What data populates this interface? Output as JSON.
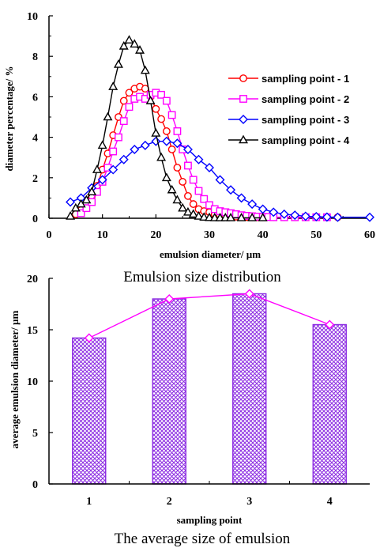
{
  "chart_data": [
    {
      "type": "line",
      "xlabel": "emulsion diameter/ µm",
      "ylabel": "diameter percentage/ %",
      "caption": "Emulsion size distribution",
      "xlim": [
        0,
        60
      ],
      "ylim": [
        0,
        10
      ],
      "xticks": [
        "0",
        "10",
        "20",
        "30",
        "40",
        "50",
        "60"
      ],
      "yticks": [
        "0",
        "2",
        "4",
        "6",
        "8",
        "10"
      ],
      "grid": false,
      "legend_position": "right",
      "series": [
        {
          "name": "sampling point - 1",
          "color": "#ff0000",
          "marker": "circle",
          "x": [
            5,
            6,
            7,
            8,
            9,
            10,
            11,
            12,
            13,
            14,
            15,
            16,
            17,
            18,
            19,
            20,
            21,
            22,
            23,
            24,
            25,
            26,
            27,
            28,
            29,
            30,
            31,
            32,
            33,
            34,
            35,
            36,
            37,
            38,
            39,
            40,
            42,
            44,
            46,
            48,
            50,
            52,
            54
          ],
          "values": [
            0.2,
            0.4,
            0.7,
            1.1,
            1.6,
            2.4,
            3.2,
            4.1,
            5.0,
            5.8,
            6.2,
            6.4,
            6.5,
            6.4,
            6.0,
            5.4,
            4.9,
            4.3,
            3.4,
            2.5,
            1.8,
            1.1,
            0.7,
            0.45,
            0.35,
            0.3,
            0.2,
            0.15,
            0.12,
            0.1,
            0.08,
            0.07,
            0.06,
            0.05,
            0.05,
            0.05,
            0.05,
            0.05,
            0.05,
            0.05,
            0.05,
            0.05,
            0.05
          ]
        },
        {
          "name": "sampling point - 2",
          "color": "#ff00ff",
          "marker": "square",
          "x": [
            6,
            7,
            8,
            9,
            10,
            11,
            12,
            13,
            14,
            15,
            16,
            17,
            18,
            19,
            20,
            21,
            22,
            23,
            24,
            25,
            26,
            27,
            28,
            29,
            30,
            31,
            32,
            33,
            34,
            35,
            36,
            37,
            38,
            39,
            40,
            41,
            42,
            44,
            46,
            48,
            50,
            52
          ],
          "values": [
            0.25,
            0.5,
            0.8,
            1.3,
            1.8,
            2.5,
            3.3,
            4.0,
            4.8,
            5.5,
            5.9,
            6.0,
            5.9,
            6.1,
            6.2,
            6.1,
            5.8,
            5.1,
            4.3,
            3.4,
            2.6,
            1.9,
            1.35,
            0.95,
            0.65,
            0.45,
            0.35,
            0.3,
            0.25,
            0.2,
            0.15,
            0.12,
            0.1,
            0.08,
            0.07,
            0.06,
            0.05,
            0.05,
            0.05,
            0.05,
            0.05,
            0.05
          ]
        },
        {
          "name": "sampling point - 3",
          "color": "#0000ff",
          "marker": "diamond",
          "x": [
            4,
            6,
            8,
            10,
            12,
            14,
            16,
            18,
            20,
            22,
            24,
            26,
            28,
            30,
            32,
            34,
            36,
            38,
            40,
            42,
            44,
            46,
            48,
            50,
            52,
            54,
            60
          ],
          "values": [
            0.8,
            1.0,
            1.5,
            1.9,
            2.4,
            2.9,
            3.4,
            3.6,
            3.8,
            3.8,
            3.7,
            3.4,
            2.9,
            2.5,
            1.9,
            1.4,
            1.0,
            0.7,
            0.45,
            0.3,
            0.2,
            0.15,
            0.1,
            0.08,
            0.06,
            0.05,
            0.05
          ]
        },
        {
          "name": "sampling point - 4",
          "color": "#000000",
          "marker": "triangle",
          "x": [
            4,
            5,
            6,
            7,
            8,
            9,
            10,
            11,
            12,
            13,
            14,
            15,
            16,
            17,
            18,
            19,
            20,
            21,
            22,
            23,
            24,
            25,
            26,
            27,
            28,
            29,
            30,
            31,
            32,
            33,
            34,
            36,
            38,
            40
          ],
          "values": [
            0.1,
            0.5,
            0.7,
            0.9,
            1.3,
            2.4,
            3.6,
            5.0,
            6.5,
            7.6,
            8.5,
            8.8,
            8.6,
            8.3,
            7.3,
            5.8,
            4.2,
            3.0,
            2.0,
            1.4,
            0.9,
            0.5,
            0.3,
            0.2,
            0.1,
            0.05,
            0.03,
            0.02,
            0.02,
            0.02,
            0.02,
            0.02,
            0.02,
            0.02
          ]
        }
      ]
    },
    {
      "type": "bar",
      "xlabel": "sampling point",
      "ylabel": "average emulsion diameter/ µm",
      "caption": "The average size of emulsion",
      "categories": [
        "1",
        "2",
        "3",
        "4"
      ],
      "values": [
        14.2,
        18.0,
        18.5,
        15.5
      ],
      "ylim": [
        0,
        20
      ],
      "yticks": [
        "0",
        "5",
        "10",
        "15",
        "20"
      ],
      "grid": false,
      "bar_color": "#8b2be2",
      "line_color": "#ff00ff",
      "line_marker": "diamond"
    }
  ]
}
